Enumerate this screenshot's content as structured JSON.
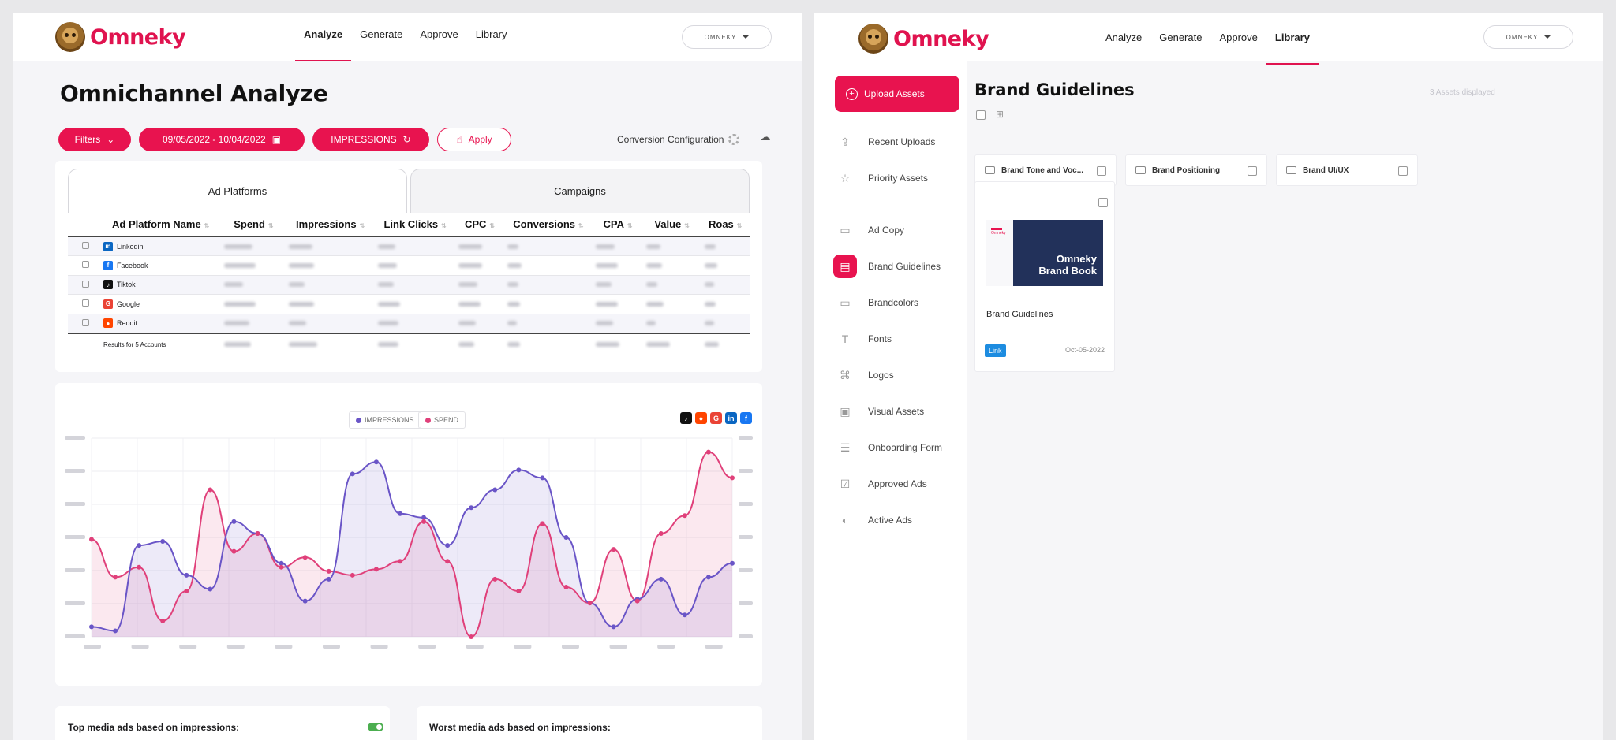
{
  "left": {
    "brand": "Omneky",
    "nav": [
      "Analyze",
      "Generate",
      "Approve",
      "Library"
    ],
    "nav_active": 0,
    "account": "OMNEKY",
    "page_title": "Omnichannel Analyze",
    "filters_label": "Filters",
    "date_range": "09/05/2022 - 10/04/2022",
    "metric_label": "IMPRESSIONS",
    "apply_label": "Apply",
    "conversion_config": "Conversion Configuration",
    "tabs": [
      "Ad Platforms",
      "Campaigns"
    ],
    "table": {
      "headers": [
        "Ad Platform Name",
        "Spend",
        "Impressions",
        "Link Clicks",
        "CPC",
        "Conversions",
        "CPA",
        "Value",
        "Roas"
      ],
      "rows": [
        {
          "name": "Linkedin",
          "icon": "linkedin-icon",
          "color": "#0a66c2"
        },
        {
          "name": "Facebook",
          "icon": "facebook-icon",
          "color": "#1877f2"
        },
        {
          "name": "Tiktok",
          "icon": "tiktok-icon",
          "color": "#111111"
        },
        {
          "name": "Google",
          "icon": "google-icon",
          "color": "#ea4335"
        },
        {
          "name": "Reddit",
          "icon": "reddit-icon",
          "color": "#ff4500"
        }
      ],
      "total_label": "Results for 5 Accounts"
    },
    "legend": {
      "impressions": "IMPRESSIONS",
      "spend": "SPEND"
    },
    "colors": {
      "impressions": "#6a55c7",
      "spend": "#e0407a",
      "accent": "#e8134f"
    },
    "top_media_label": "Top media ads based on impressions:",
    "worst_media_label": "Worst media ads based on impressions:"
  },
  "right": {
    "brand": "Omneky",
    "nav": [
      "Analyze",
      "Generate",
      "Approve",
      "Library"
    ],
    "nav_active": 3,
    "account": "OMNEKY",
    "upload_label": "Upload Assets",
    "sidebar": [
      {
        "label": "Recent Uploads",
        "icon": "upload-icon"
      },
      {
        "label": "Priority Assets",
        "icon": "star-icon"
      },
      {
        "label": "Ad Copy",
        "icon": "folder-icon"
      },
      {
        "label": "Brand Guidelines",
        "icon": "book-icon",
        "active": true
      },
      {
        "label": "Brandcolors",
        "icon": "folder-icon"
      },
      {
        "label": "Fonts",
        "icon": "font-icon"
      },
      {
        "label": "Logos",
        "icon": "command-icon"
      },
      {
        "label": "Visual Assets",
        "icon": "image-icon"
      },
      {
        "label": "Onboarding Form",
        "icon": "form-icon"
      },
      {
        "label": "Approved Ads",
        "icon": "check-icon"
      },
      {
        "label": "Active Ads",
        "icon": "toggle-icon"
      }
    ],
    "title": "Brand Guidelines",
    "assets_count": "3 Assets displayed",
    "folders": [
      "Brand Tone and Voc...",
      "Brand Positioning",
      "Brand UI/UX"
    ],
    "asset": {
      "thumb_brand": "Omneky",
      "thumb_line1": "Omneky",
      "thumb_line2": "Brand Book",
      "name": "Brand Guidelines",
      "badge": "Link",
      "date": "Oct-05-2022"
    }
  }
}
